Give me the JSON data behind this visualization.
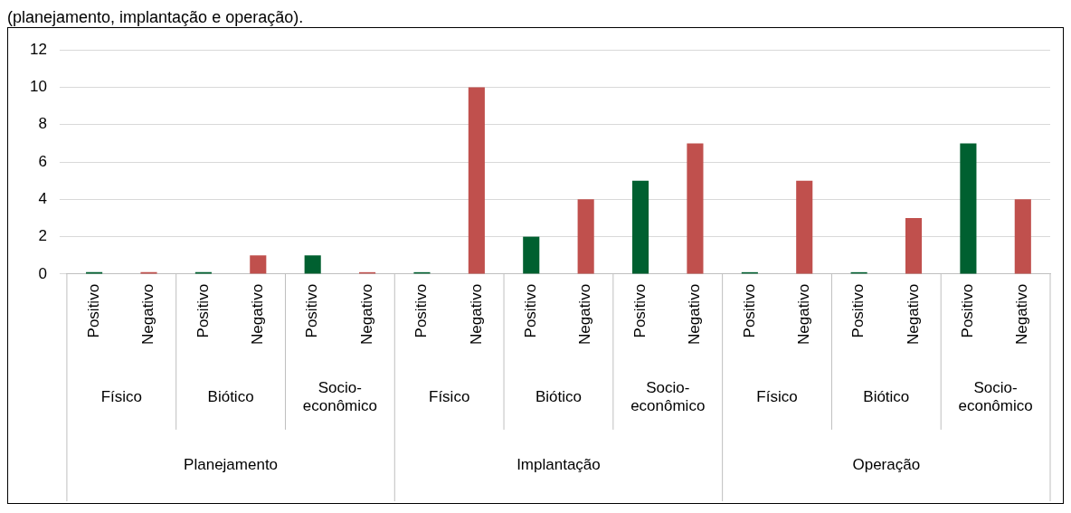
{
  "chart_data": {
    "type": "bar",
    "subtitle": "(planejamento, implantação e operação).",
    "categories": [
      "Positivo",
      "Negativo",
      "Positivo",
      "Negativo",
      "Positivo",
      "Negativo",
      "Positivo",
      "Negativo",
      "Positivo",
      "Negativo",
      "Positivo",
      "Negativo",
      "Positivo",
      "Negativo",
      "Positivo",
      "Negativo",
      "Positivo",
      "Negativo"
    ],
    "values": [
      0.1,
      0.1,
      0.1,
      1,
      1,
      0.1,
      0.1,
      10,
      2,
      4,
      5,
      7,
      0.1,
      5,
      0.1,
      3,
      7,
      4
    ],
    "colors": [
      "#006030",
      "#c0504d",
      "#006030",
      "#c0504d",
      "#006030",
      "#c0504d",
      "#006030",
      "#c0504d",
      "#006030",
      "#c0504d",
      "#006030",
      "#c0504d",
      "#006030",
      "#c0504d",
      "#006030",
      "#c0504d",
      "#006030",
      "#c0504d"
    ],
    "annotations": [
      "Físico",
      "Biótico",
      "Socio-econômico",
      "Físico",
      "Biótico",
      "Socio-econômico",
      "Físico",
      "Biótico",
      "Socio-econômico",
      "Planejamento",
      "Implantação",
      "Operação"
    ],
    "ylim": [
      0,
      12
    ],
    "yticks": [
      0,
      2,
      4,
      6,
      8,
      10,
      12
    ],
    "grid": "y",
    "legend": false
  }
}
